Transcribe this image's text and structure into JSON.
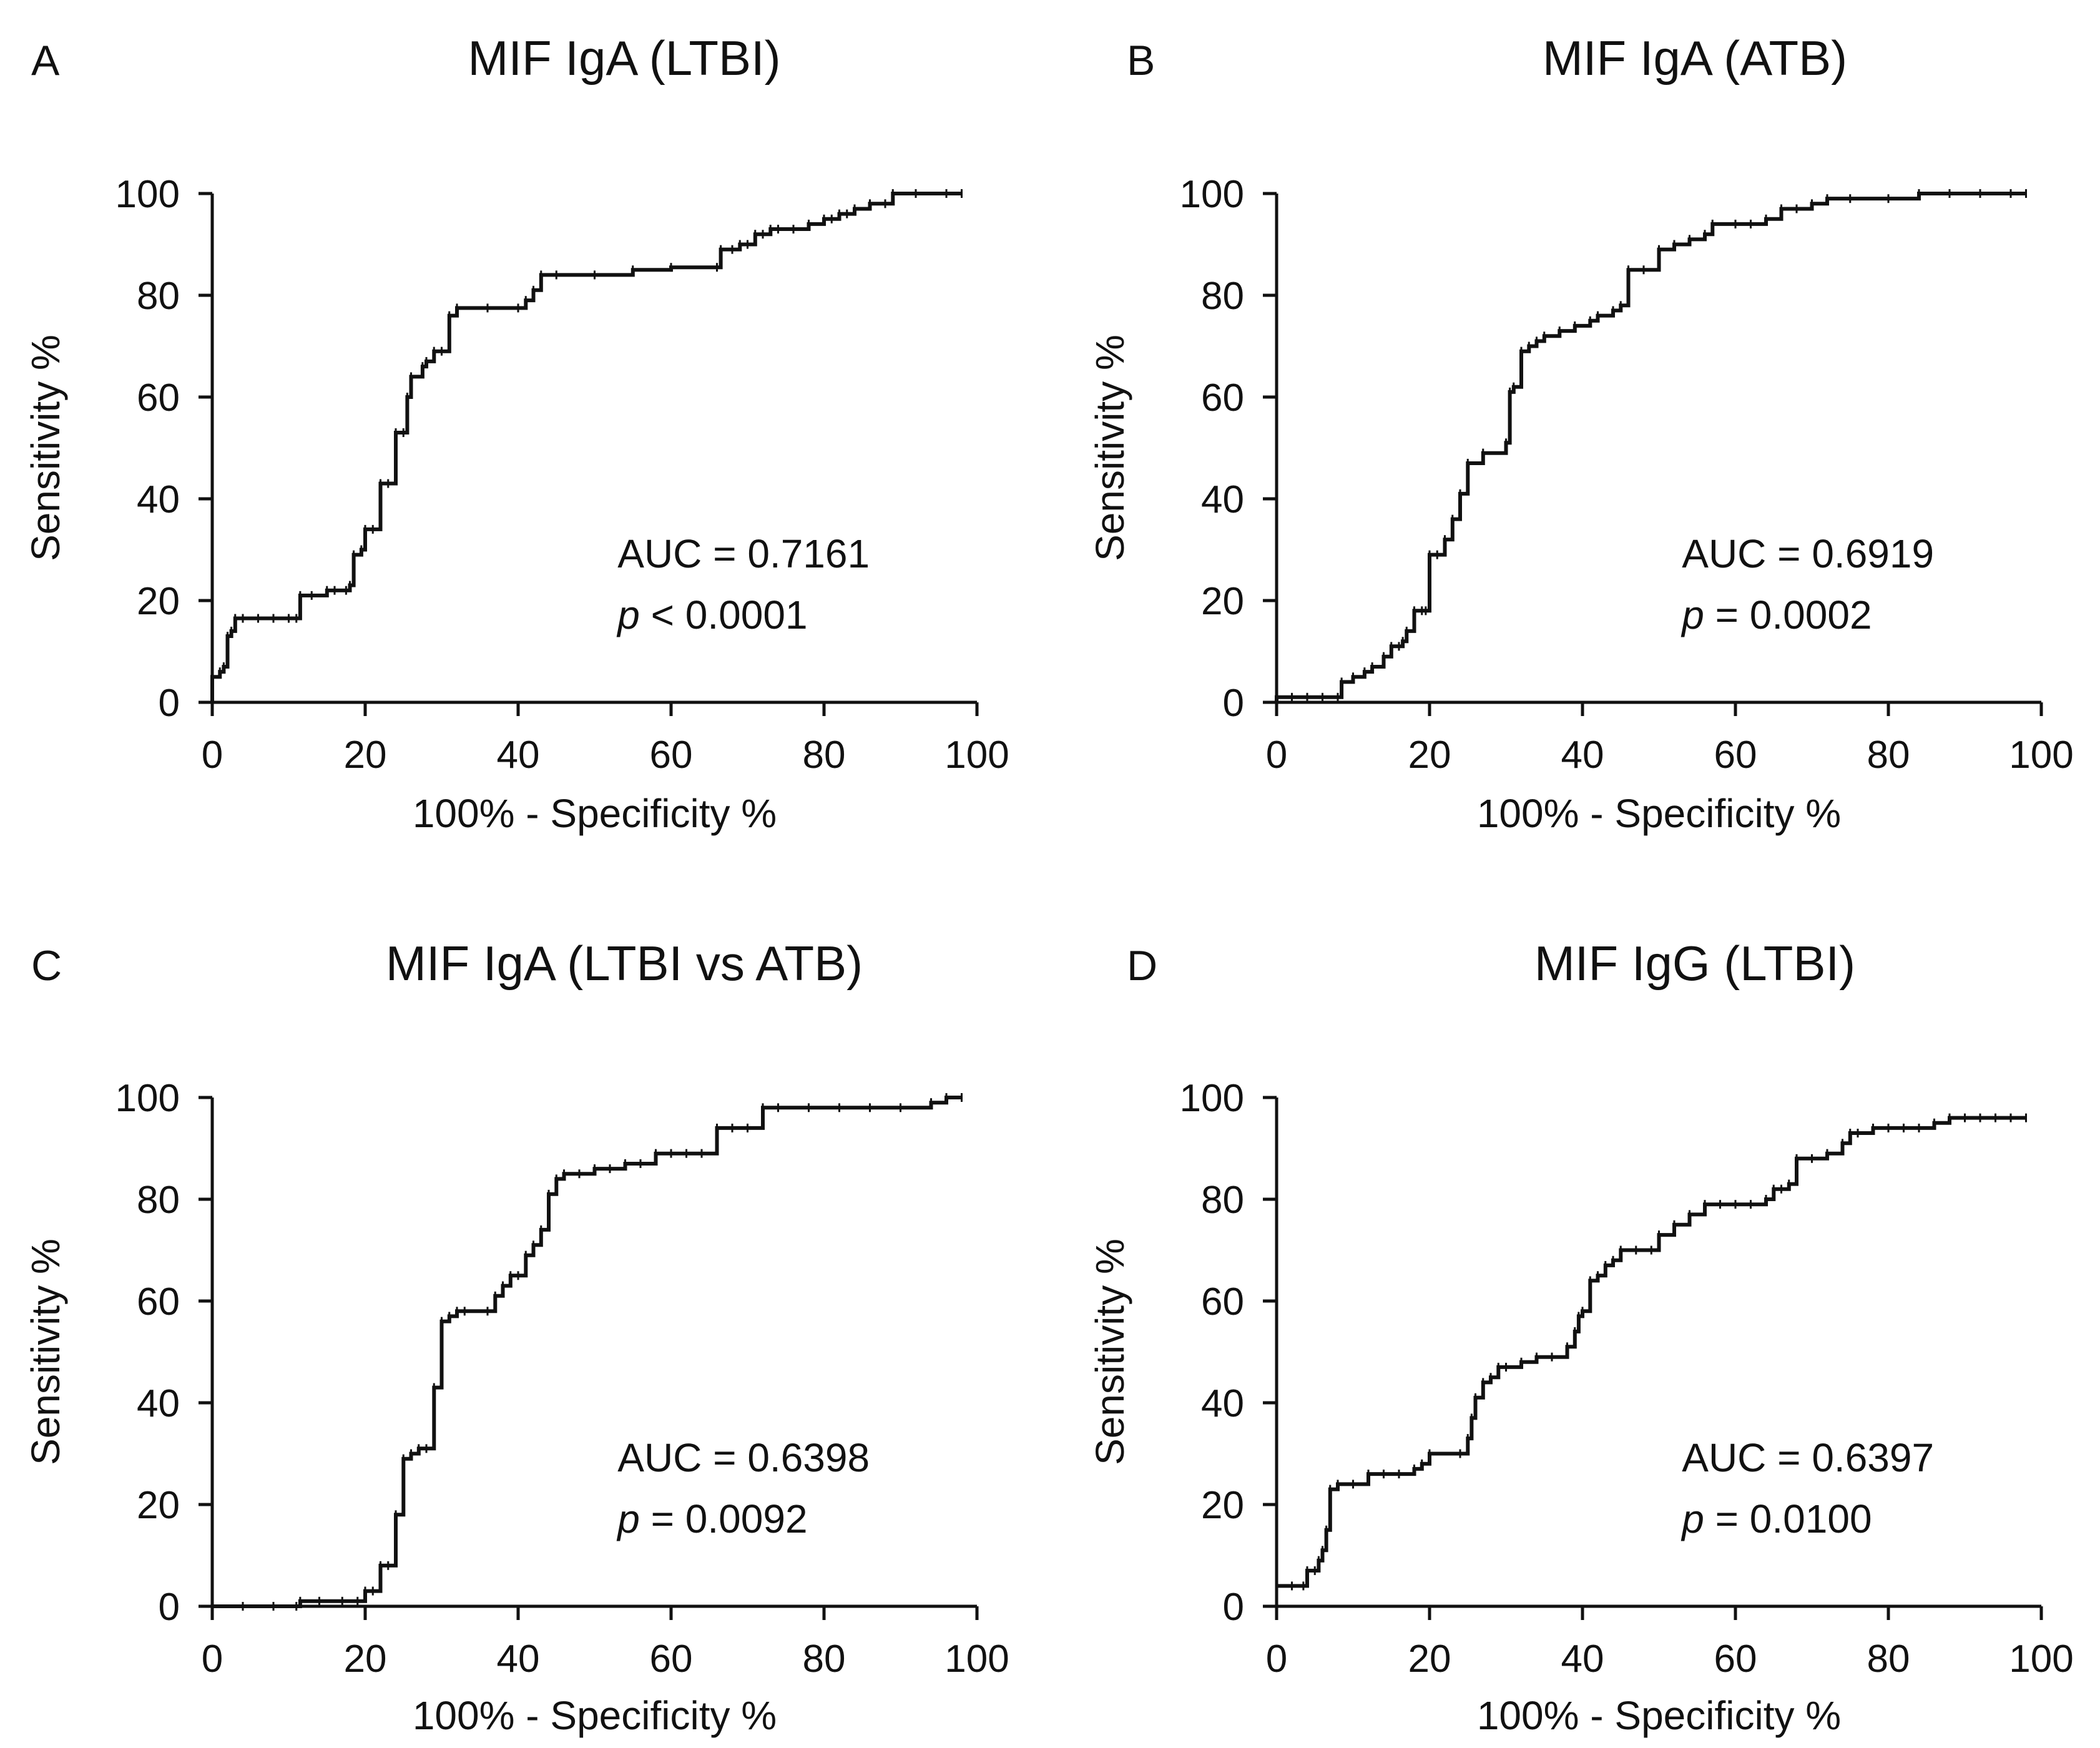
{
  "chart_data": [
    {
      "panel": "A",
      "type": "line",
      "title": "MIF IgA (LTBI)",
      "xlabel": "100% - Specificity %",
      "ylabel": "Sensitivity %",
      "xlim": [
        0,
        100
      ],
      "ylim": [
        0,
        100
      ],
      "xticks": [
        "0",
        "20",
        "40",
        "60",
        "80",
        "100"
      ],
      "yticks": [
        "0",
        "20",
        "40",
        "60",
        "80",
        "100"
      ],
      "auc_text": "AUC = 0.7161",
      "p_symbol": "p",
      "p_text": " < 0.0001",
      "series": [
        {
          "name": "MIF IgA (LTBI)",
          "x": [
            0,
            0,
            1,
            1.5,
            2,
            2.5,
            3,
            4,
            6,
            8,
            10,
            11,
            11.5,
            13,
            15,
            16,
            17.5,
            18,
            18.5,
            19.5,
            20,
            21,
            22,
            23,
            24,
            25,
            25.5,
            26,
            27.5,
            28,
            29,
            30,
            31,
            32,
            36,
            40,
            41,
            42,
            43,
            45,
            50,
            55,
            60,
            66,
            66.5,
            68,
            69,
            70,
            71,
            72,
            73,
            74,
            76,
            78,
            80,
            81,
            82,
            83,
            84,
            86,
            88,
            89,
            92,
            96,
            98
          ],
          "y": [
            0,
            5,
            6,
            7,
            13,
            14,
            16.5,
            16.5,
            16.5,
            16.5,
            16.5,
            16.5,
            21,
            21,
            22,
            22,
            22,
            23,
            29,
            30,
            34,
            34,
            43,
            43,
            53,
            53,
            60,
            64,
            66,
            67,
            69,
            69,
            76,
            77.5,
            77.5,
            77.5,
            79,
            81,
            84,
            84,
            84,
            85,
            85.5,
            85.5,
            89,
            89,
            90,
            90,
            92,
            92,
            93,
            93,
            93,
            94,
            95,
            95,
            96,
            96,
            97,
            98,
            98,
            100,
            100,
            100,
            100
          ]
        }
      ]
    },
    {
      "panel": "B",
      "type": "line",
      "title": "MIF IgA (ATB)",
      "xlabel": "100% - Specificity %",
      "ylabel": "Sensitivity %",
      "xlim": [
        0,
        100
      ],
      "ylim": [
        0,
        100
      ],
      "xticks": [
        "0",
        "20",
        "40",
        "60",
        "80",
        "100"
      ],
      "yticks": [
        "0",
        "20",
        "40",
        "60",
        "80",
        "100"
      ],
      "auc_text": "AUC = 0.6919",
      "p_symbol": "p",
      "p_text": " = 0.0002",
      "series": [
        {
          "name": "MIF IgA (ATB)",
          "x": [
            0,
            0,
            2,
            4,
            6,
            8,
            8.5,
            10,
            11.5,
            12.5,
            14,
            15,
            16,
            16.5,
            17,
            18,
            19,
            19.5,
            20,
            21,
            22,
            23,
            24,
            25,
            27,
            30,
            30.5,
            31,
            32,
            33,
            34,
            35,
            37,
            39,
            41,
            42,
            44,
            45,
            46,
            48,
            50,
            52,
            54,
            56,
            57,
            60,
            62,
            64,
            66,
            68,
            70,
            72,
            75,
            80,
            84,
            88,
            92,
            96,
            98
          ],
          "y": [
            0,
            1,
            1,
            1,
            1,
            1,
            4,
            5,
            6,
            7,
            9,
            11,
            11,
            12,
            14,
            18,
            18,
            18,
            29,
            29,
            32,
            36,
            41,
            47,
            49,
            51,
            61,
            62,
            69,
            70,
            71,
            72,
            73,
            74,
            75,
            76,
            77,
            78,
            85,
            85,
            89,
            90,
            91,
            92,
            94,
            94,
            94,
            95,
            97,
            97,
            98,
            99,
            99,
            99,
            100,
            100,
            100,
            100,
            100
          ]
        }
      ]
    },
    {
      "panel": "C",
      "type": "line",
      "title": "MIF IgA (LTBI vs ATB)",
      "xlabel": "100% - Specificity %",
      "ylabel": "Sensitivity %",
      "xlim": [
        0,
        100
      ],
      "ylim": [
        0,
        100
      ],
      "xticks": [
        "0",
        "20",
        "40",
        "60",
        "80",
        "100"
      ],
      "yticks": [
        "0",
        "20",
        "40",
        "60",
        "80",
        "100"
      ],
      "auc_text": "AUC = 0.6398",
      "p_symbol": "p",
      "p_text": " = 0.0092",
      "series": [
        {
          "name": "MIF IgA (LTBI vs ATB)",
          "x": [
            0,
            4,
            8,
            11,
            11.5,
            14,
            17,
            19,
            20,
            21,
            22,
            23,
            24,
            25,
            26,
            27,
            28,
            29,
            30,
            31,
            32,
            33,
            36,
            37,
            38,
            39,
            40,
            41,
            42,
            43,
            44,
            45,
            46,
            48,
            50,
            52,
            54,
            56,
            58,
            60,
            62,
            64,
            66,
            68,
            70,
            72,
            74,
            78,
            82,
            86,
            90,
            94,
            96,
            98
          ],
          "y": [
            0,
            0,
            0,
            0,
            1,
            1,
            1,
            1,
            3,
            3,
            8,
            8,
            18,
            29,
            30,
            31,
            31,
            43,
            56,
            57,
            58,
            58,
            58,
            61,
            63,
            65,
            65,
            69,
            71,
            74,
            81,
            84,
            85,
            85,
            86,
            86,
            87,
            87,
            89,
            89,
            89,
            89,
            94,
            94,
            94,
            98,
            98,
            98,
            98,
            98,
            98,
            99,
            100,
            100
          ]
        }
      ]
    },
    {
      "panel": "D",
      "type": "line",
      "title": "MIF IgG (LTBI)",
      "xlabel": "100% - Specificity %",
      "ylabel": "Sensitivity %",
      "xlim": [
        0,
        100
      ],
      "ylim": [
        0,
        100
      ],
      "xticks": [
        "0",
        "20",
        "40",
        "60",
        "80",
        "100"
      ],
      "yticks": [
        "0",
        "20",
        "40",
        "60",
        "80",
        "100"
      ],
      "auc_text": "AUC = 0.6397",
      "p_symbol": "p",
      "p_text": " = 0.0100",
      "series": [
        {
          "name": "MIF IgG (LTBI)",
          "x": [
            0,
            2,
            3.5,
            4,
            5,
            5.5,
            6,
            6.5,
            7,
            8,
            10,
            12,
            14,
            16,
            18,
            19,
            20,
            24,
            25,
            25.5,
            26,
            27,
            28,
            29,
            30,
            32,
            34,
            36,
            38,
            39,
            39.5,
            40,
            41,
            42,
            43,
            44,
            45,
            47,
            49,
            50,
            52,
            54,
            56,
            58,
            60,
            62,
            64,
            65,
            66,
            67,
            68,
            70,
            72,
            74,
            75,
            76,
            78,
            80,
            82,
            84,
            86,
            88,
            90,
            92,
            94,
            96,
            98
          ],
          "y": [
            4,
            4,
            4,
            7,
            7,
            9,
            11,
            15,
            23,
            24,
            24,
            26,
            26,
            26,
            27,
            28,
            30,
            30,
            33,
            37,
            41,
            44,
            45,
            47,
            47,
            48,
            49,
            49,
            51,
            54,
            57,
            58,
            64,
            65,
            67,
            68,
            70,
            70,
            70,
            73,
            75,
            77,
            79,
            79,
            79,
            79,
            80,
            82,
            82,
            83,
            88,
            88,
            89,
            91,
            93,
            93,
            94,
            94,
            94,
            94,
            95,
            96,
            96,
            96,
            96,
            96,
            96
          ]
        }
      ]
    }
  ]
}
